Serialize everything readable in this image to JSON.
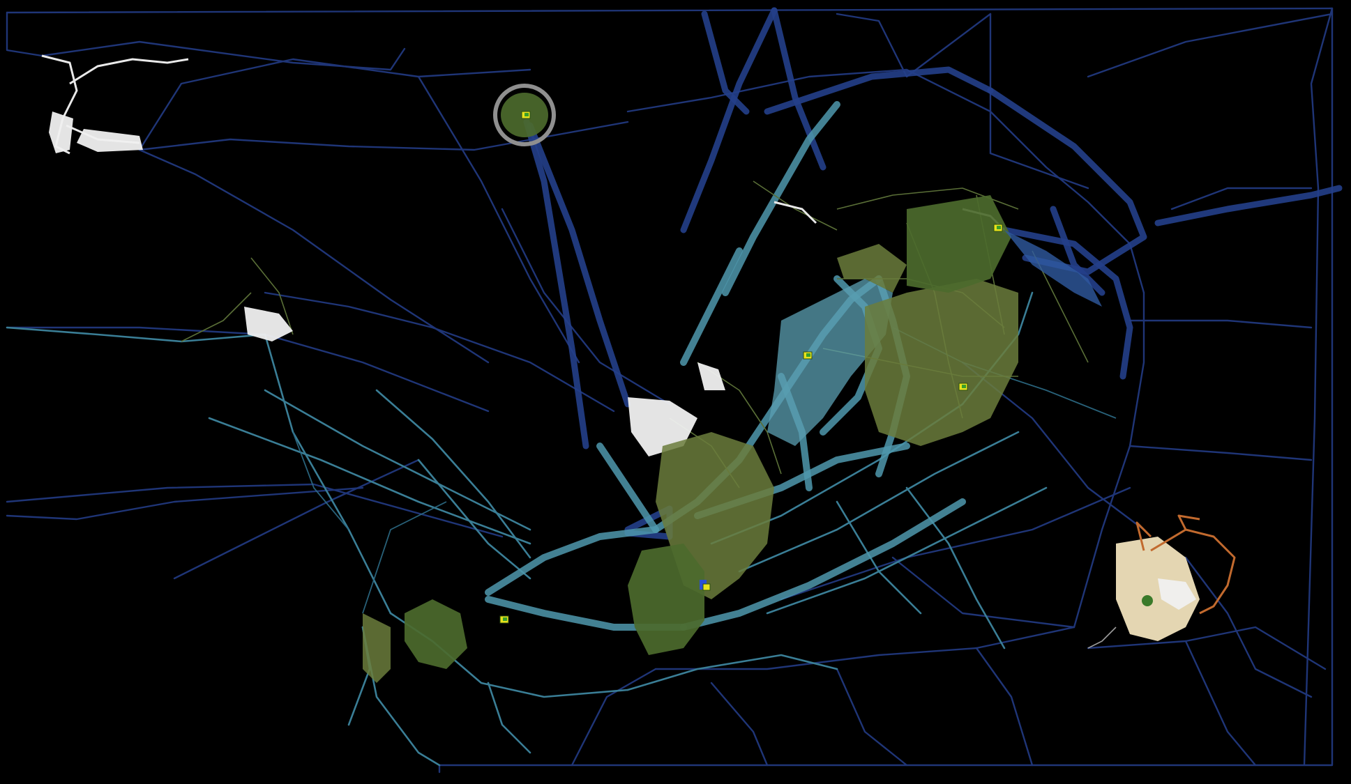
{
  "map": {
    "background_color": "#000000",
    "route_colors": {
      "deep_sea": "#1f3577",
      "shallow_sea": "#3a7e96",
      "land": "#5a6f37",
      "desert_road": "#c26a2e",
      "snow_road": "#e9e9e9"
    },
    "terrain_colors": {
      "forest": "#4c6a2c",
      "grassland": "#6b7d3c",
      "shallow_water": "#5b9fb2",
      "deep_water": "#2f5aa0",
      "snow": "#f0f0f0",
      "desert": "#e4d6b2"
    },
    "marker_color": "#e8e21c",
    "markers": [
      {
        "id": "marker-north-island",
        "icon": "waypoint-flag-icon"
      },
      {
        "id": "marker-north-east",
        "icon": "waypoint-flag-icon"
      },
      {
        "id": "marker-central-lake",
        "icon": "waypoint-flag-icon"
      },
      {
        "id": "marker-east-lake",
        "icon": "waypoint-flag-icon"
      },
      {
        "id": "marker-southern-peninsula",
        "icon": "waypoint-flag-icon"
      },
      {
        "id": "marker-south-west",
        "icon": "waypoint-flag-icon"
      }
    ]
  }
}
